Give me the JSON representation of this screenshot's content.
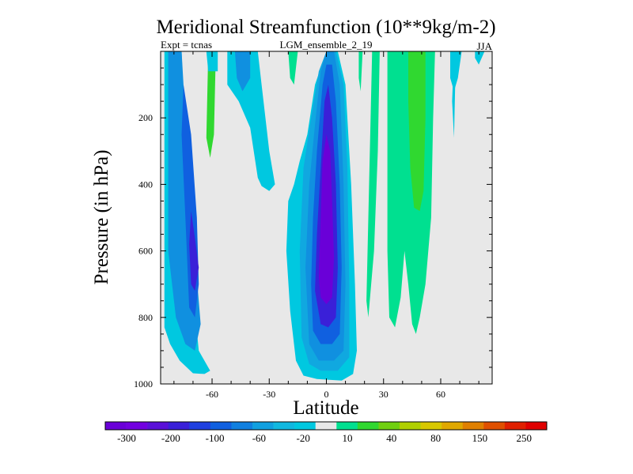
{
  "chart_data": {
    "type": "contour",
    "title": "Meridional Streamfunction (10**9kg/m-2)",
    "subtitle_left": "Expt = tcnas",
    "subtitle_center": "LGM_ensemble_2_19",
    "subtitle_right": "JJA",
    "xlabel": "Latitude",
    "ylabel": "Pressure (in hPa)",
    "xlim": [
      -87,
      87
    ],
    "ylim": [
      1000,
      0
    ],
    "xticks": [
      {
        "value": -60,
        "label": "-60"
      },
      {
        "value": -30,
        "label": "-30"
      },
      {
        "value": 0,
        "label": "0"
      },
      {
        "value": 30,
        "label": "30"
      },
      {
        "value": 60,
        "label": "60"
      }
    ],
    "yticks": [
      {
        "value": 200,
        "label": "200"
      },
      {
        "value": 400,
        "label": "400"
      },
      {
        "value": 600,
        "label": "600"
      },
      {
        "value": 800,
        "label": "800"
      },
      {
        "value": 1000,
        "label": "1000"
      }
    ],
    "colorbar": {
      "colors": [
        "#6a00d8",
        "#7200e0",
        "#5a10d8",
        "#3a20d8",
        "#2040e0",
        "#1060e0",
        "#1080e0",
        "#10a0e0",
        "#10b8e0",
        "#00c8e0",
        "#e8e8e8",
        "#00e090",
        "#30d830",
        "#70d010",
        "#b0d000",
        "#d8c800",
        "#e0a800",
        "#e08000",
        "#e05000",
        "#e02000",
        "#e00000"
      ],
      "tick_labels": [
        "-300",
        "-200",
        "-100",
        "-60",
        "-20",
        "10",
        "40",
        "80",
        "150",
        "250"
      ]
    },
    "regions": [
      {
        "band": "cyan",
        "value": "-20 to 0",
        "points": [
          [
            -85,
            0
          ],
          [
            -76,
            0
          ],
          [
            -74,
            300
          ],
          [
            -72,
            600
          ],
          [
            -67,
            900
          ],
          [
            -61,
            960
          ],
          [
            -64,
            970
          ],
          [
            -70,
            968
          ],
          [
            -77,
            930
          ],
          [
            -82,
            880
          ],
          [
            -85,
            830
          ]
        ]
      },
      {
        "band": "blue-light",
        "value": "-60 to -20",
        "points": [
          [
            -83,
            0
          ],
          [
            -76,
            0
          ],
          [
            -72,
            400
          ],
          [
            -66,
            820
          ],
          [
            -69,
            900
          ],
          [
            -74,
            880
          ],
          [
            -79,
            800
          ],
          [
            -83,
            600
          ]
        ]
      },
      {
        "band": "blue-medium",
        "value": "-100 to -60",
        "points": [
          [
            -75,
            100
          ],
          [
            -71,
            250
          ],
          [
            -68,
            500
          ],
          [
            -67,
            700
          ],
          [
            -69,
            800
          ],
          [
            -72,
            770
          ],
          [
            -74,
            500
          ],
          [
            -76,
            250
          ]
        ]
      },
      {
        "band": "blue-dark",
        "value": "-200 to -100",
        "points": [
          [
            -71,
            480
          ],
          [
            -69,
            560
          ],
          [
            -67,
            650
          ],
          [
            -69,
            720
          ],
          [
            -71,
            700
          ],
          [
            -72,
            580
          ]
        ]
      },
      {
        "band": "cyan",
        "value": "-20 to 0",
        "points": [
          [
            -52,
            0
          ],
          [
            -36,
            0
          ],
          [
            -34,
            100
          ],
          [
            -30,
            300
          ],
          [
            -27,
            400
          ],
          [
            -30,
            420
          ],
          [
            -34,
            405
          ],
          [
            -36,
            380
          ],
          [
            -40,
            230
          ],
          [
            -46,
            150
          ],
          [
            -52,
            100
          ]
        ]
      },
      {
        "band": "blue-light",
        "value": "-60 to -20",
        "points": [
          [
            -48,
            0
          ],
          [
            -40,
            0
          ],
          [
            -40,
            80
          ],
          [
            -44,
            120
          ],
          [
            -47,
            80
          ]
        ]
      },
      {
        "band": "green",
        "value": "10 to 40",
        "points": [
          [
            -62,
            0
          ],
          [
            -58,
            0
          ],
          [
            -59,
            250
          ],
          [
            -61,
            320
          ],
          [
            -63,
            260
          ]
        ]
      },
      {
        "band": "cyan",
        "value": "-20 to 0",
        "points": [
          [
            -63,
            0
          ],
          [
            -57,
            0
          ],
          [
            -57,
            60
          ],
          [
            -62,
            60
          ]
        ]
      },
      {
        "band": "teal",
        "value": "0 to 10",
        "points": [
          [
            -20,
            0
          ],
          [
            -15,
            0
          ],
          [
            -17,
            100
          ],
          [
            -19,
            80
          ]
        ]
      },
      {
        "band": "cyan",
        "value": "-20 to 0",
        "points": [
          [
            -20,
            450
          ],
          [
            -17,
            400
          ],
          [
            -14,
            330
          ],
          [
            -10,
            250
          ],
          [
            -6,
            100
          ],
          [
            0,
            0
          ],
          [
            6,
            0
          ],
          [
            10,
            100
          ],
          [
            13,
            400
          ],
          [
            15,
            700
          ],
          [
            16,
            900
          ],
          [
            14,
            970
          ],
          [
            8,
            990
          ],
          [
            -5,
            985
          ],
          [
            -12,
            975
          ],
          [
            -16,
            930
          ],
          [
            -19,
            780
          ],
          [
            -21,
            600
          ]
        ]
      },
      {
        "band": "blue-xlight",
        "value": "-60 to -20",
        "points": [
          [
            -14,
            600
          ],
          [
            -12,
            350
          ],
          [
            -8,
            200
          ],
          [
            -4,
            60
          ],
          [
            0,
            0
          ],
          [
            5,
            0
          ],
          [
            9,
            100
          ],
          [
            11,
            350
          ],
          [
            12,
            700
          ],
          [
            12,
            920
          ],
          [
            6,
            960
          ],
          [
            -3,
            960
          ],
          [
            -9,
            940
          ],
          [
            -13,
            860
          ]
        ]
      },
      {
        "band": "blue-light",
        "value": "-100 to -60",
        "points": [
          [
            -11,
            650
          ],
          [
            -9,
            400
          ],
          [
            -6,
            220
          ],
          [
            -3,
            60
          ],
          [
            0,
            0
          ],
          [
            4,
            0
          ],
          [
            7,
            100
          ],
          [
            9,
            400
          ],
          [
            10,
            700
          ],
          [
            9,
            900
          ],
          [
            4,
            930
          ],
          [
            -4,
            930
          ],
          [
            -9,
            880
          ]
        ]
      },
      {
        "band": "blue-medium",
        "value": "-200 to -100",
        "points": [
          [
            -8,
            700
          ],
          [
            -7,
            500
          ],
          [
            -5,
            300
          ],
          [
            -2,
            100
          ],
          [
            0,
            40
          ],
          [
            3,
            40
          ],
          [
            5,
            150
          ],
          [
            7,
            400
          ],
          [
            8,
            650
          ],
          [
            7,
            850
          ],
          [
            3,
            880
          ],
          [
            -3,
            880
          ],
          [
            -7,
            840
          ]
        ]
      },
      {
        "band": "blue-dark",
        "value": "-300 to -200",
        "points": [
          [
            -6,
            720
          ],
          [
            -5,
            550
          ],
          [
            -3,
            350
          ],
          [
            -1,
            150
          ],
          [
            1,
            100
          ],
          [
            3,
            200
          ],
          [
            5,
            400
          ],
          [
            6,
            650
          ],
          [
            5,
            800
          ],
          [
            1,
            830
          ],
          [
            -3,
            820
          ]
        ]
      },
      {
        "band": "purple",
        "value": "< -300",
        "points": [
          [
            -4,
            680
          ],
          [
            -3,
            500
          ],
          [
            -2,
            330
          ],
          [
            0,
            250
          ],
          [
            2,
            300
          ],
          [
            3,
            450
          ],
          [
            4,
            620
          ],
          [
            3,
            740
          ],
          [
            0,
            760
          ],
          [
            -3,
            740
          ]
        ]
      },
      {
        "band": "teal",
        "value": "0 to 10",
        "points": [
          [
            24,
            0
          ],
          [
            28,
            0
          ],
          [
            27,
            300
          ],
          [
            25,
            600
          ],
          [
            22,
            800
          ],
          [
            21,
            750
          ]
        ]
      },
      {
        "band": "teal",
        "value": "0 to 10",
        "points": [
          [
            32,
            0
          ],
          [
            57,
            0
          ],
          [
            56,
            200
          ],
          [
            55,
            500
          ],
          [
            52,
            700
          ],
          [
            49,
            800
          ],
          [
            47,
            850
          ],
          [
            45,
            820
          ],
          [
            43,
            700
          ],
          [
            41,
            600
          ],
          [
            39,
            740
          ],
          [
            36,
            830
          ],
          [
            33,
            800
          ],
          [
            32,
            600
          ]
        ]
      },
      {
        "band": "green",
        "value": "10 to 40",
        "points": [
          [
            43,
            0
          ],
          [
            52,
            0
          ],
          [
            52,
            200
          ],
          [
            51,
            420
          ],
          [
            49,
            480
          ],
          [
            46,
            470
          ],
          [
            44,
            350
          ],
          [
            43,
            150
          ]
        ]
      },
      {
        "band": "cyan",
        "value": "-20 to 0",
        "points": [
          [
            65,
            0
          ],
          [
            71,
            0
          ],
          [
            69,
            80
          ],
          [
            67,
            120
          ],
          [
            65,
            80
          ]
        ]
      },
      {
        "band": "cyan",
        "value": "-20 to 0",
        "points": [
          [
            78,
            0
          ],
          [
            83,
            0
          ],
          [
            80,
            40
          ],
          [
            78,
            20
          ]
        ]
      },
      {
        "band": "cyan",
        "value": "-20 to 0",
        "points": [
          [
            67,
            0
          ],
          [
            68,
            0
          ],
          [
            67,
            260
          ],
          [
            66,
            150
          ]
        ]
      },
      {
        "band": "teal",
        "value": "0 to 10",
        "points": [
          [
            17,
            0
          ],
          [
            19,
            0
          ],
          [
            18,
            120
          ],
          [
            17,
            80
          ]
        ]
      }
    ],
    "band_colors": {
      "cyan": "#00c8e0",
      "blue-xlight": "#10a8e0",
      "blue-light": "#1090e0",
      "blue-medium": "#1060e0",
      "blue-dark": "#3a20d8",
      "purple": "#6a00d8",
      "teal": "#00e090",
      "green": "#30d830"
    }
  }
}
